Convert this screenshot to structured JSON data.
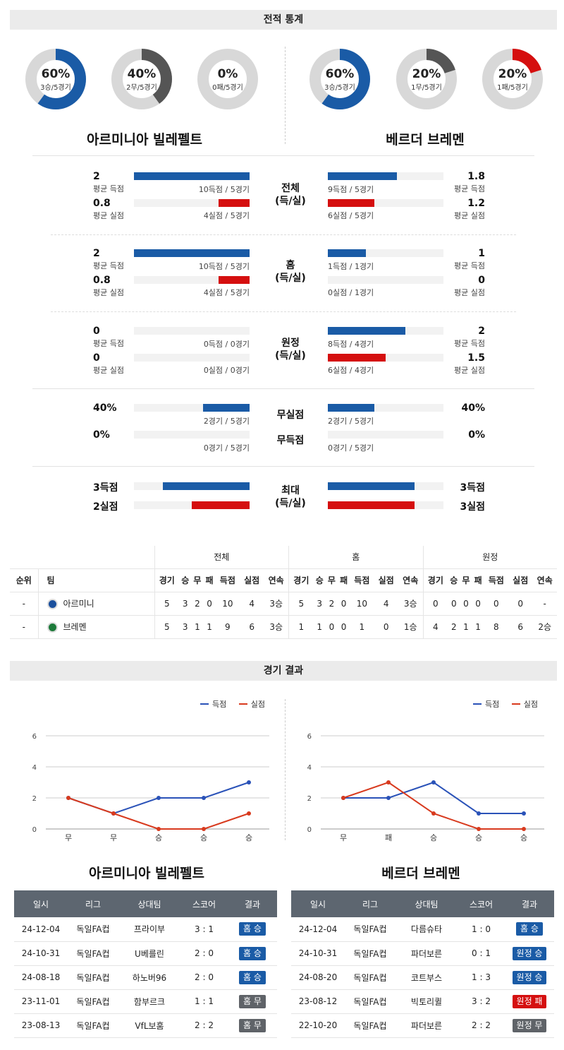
{
  "headers": {
    "stats": "전적 통계",
    "results": "경기 결과"
  },
  "teams": {
    "home": "아르미니아 빌레펠트",
    "away": "베르더 브레멘"
  },
  "donuts": {
    "home": [
      {
        "pct": "60%",
        "sub": "3승/5경기",
        "fraction": 0.6,
        "color": "#1a5ba6"
      },
      {
        "pct": "40%",
        "sub": "2무/5경기",
        "fraction": 0.4,
        "color": "#555555"
      },
      {
        "pct": "0%",
        "sub": "0패/5경기",
        "fraction": 0.0,
        "color": "#d50f0f"
      }
    ],
    "away": [
      {
        "pct": "60%",
        "sub": "3승/5경기",
        "fraction": 0.6,
        "color": "#1a5ba6"
      },
      {
        "pct": "20%",
        "sub": "1무/5경기",
        "fraction": 0.2,
        "color": "#555555"
      },
      {
        "pct": "20%",
        "sub": "1패/5경기",
        "fraction": 0.2,
        "color": "#d50f0f"
      }
    ]
  },
  "stats": {
    "avg_for": "평균 득점",
    "avg_against": "평균 실점",
    "groups": [
      {
        "label": "전체",
        "label2": "(득/실)",
        "home": {
          "for": "2",
          "for_detail": "10득점 / 5경기",
          "for_frac": 1.0,
          "against": "0.8",
          "against_detail": "4실점 / 5경기",
          "against_frac": 0.27
        },
        "away": {
          "for": "1.8",
          "for_detail": "9득점 / 5경기",
          "for_frac": 0.6,
          "against": "1.2",
          "against_detail": "6실점 / 5경기",
          "against_frac": 0.4
        }
      },
      {
        "label": "홈",
        "label2": "(득/실)",
        "home": {
          "for": "2",
          "for_detail": "10득점 / 5경기",
          "for_frac": 1.0,
          "against": "0.8",
          "against_detail": "4실점 / 5경기",
          "against_frac": 0.27
        },
        "away": {
          "for": "1",
          "for_detail": "1득점 / 1경기",
          "for_frac": 0.33,
          "against": "0",
          "against_detail": "0실점 / 1경기",
          "against_frac": 0
        }
      },
      {
        "label": "원정",
        "label2": "(득/실)",
        "home": {
          "for": "0",
          "for_detail": "0득점 / 0경기",
          "for_frac": 0,
          "against": "0",
          "against_detail": "0실점 / 0경기",
          "against_frac": 0
        },
        "away": {
          "for": "2",
          "for_detail": "8득점 / 4경기",
          "for_frac": 0.67,
          "against": "1.5",
          "against_detail": "6실점 / 4경기",
          "against_frac": 0.5
        }
      }
    ],
    "clean_sheet": {
      "label": "무실점",
      "home": "40%",
      "home_detail": "2경기 / 5경기",
      "home_frac": 0.4,
      "away": "40%",
      "away_detail": "2경기 / 5경기",
      "away_frac": 0.4
    },
    "no_score": {
      "label": "무득점",
      "home": "0%",
      "home_detail": "0경기 / 5경기",
      "home_frac": 0,
      "away": "0%",
      "away_detail": "0경기 / 5경기",
      "away_frac": 0
    },
    "max": {
      "label": "최대",
      "label2": "(득/실)",
      "home_for": "3득점",
      "home_for_frac": 0.75,
      "home_against": "2실점",
      "home_against_frac": 0.5,
      "away_for": "3득점",
      "away_for_frac": 0.75,
      "away_against": "3실점",
      "away_against_frac": 0.75
    }
  },
  "standings": {
    "groups": [
      "전체",
      "홈",
      "원정"
    ],
    "cols": [
      "순위",
      "팀",
      "경기",
      "승",
      "무",
      "패",
      "득점",
      "실점",
      "연속"
    ],
    "rows": [
      {
        "rank": "-",
        "team": "아르미니",
        "crest": "#1a4f9c",
        "all": [
          "5",
          "3",
          "2",
          "0",
          "10",
          "4",
          "3승"
        ],
        "home": [
          "5",
          "3",
          "2",
          "0",
          "10",
          "4",
          "3승"
        ],
        "away": [
          "0",
          "0",
          "0",
          "0",
          "0",
          "0",
          "-"
        ]
      },
      {
        "rank": "-",
        "team": "브레멘",
        "crest": "#1d7a3a",
        "all": [
          "5",
          "3",
          "1",
          "1",
          "9",
          "6",
          "3승"
        ],
        "home": [
          "1",
          "1",
          "0",
          "0",
          "1",
          "0",
          "1승"
        ],
        "away": [
          "4",
          "2",
          "1",
          "1",
          "8",
          "6",
          "2승"
        ]
      }
    ]
  },
  "legend": {
    "for": "득점",
    "against": "실점"
  },
  "colors": {
    "for": "#2a52b8",
    "against": "#d83a1e"
  },
  "chart_data": [
    {
      "type": "line",
      "categories": [
        "무",
        "무",
        "승",
        "승",
        "승"
      ],
      "ylim": [
        0,
        6
      ],
      "yticks": [
        "0",
        "2",
        "4",
        "6"
      ],
      "series": [
        {
          "name": "득점",
          "values": [
            2,
            1,
            2,
            2,
            3
          ]
        },
        {
          "name": "실점",
          "values": [
            2,
            1,
            0,
            0,
            1
          ]
        }
      ]
    },
    {
      "type": "line",
      "categories": [
        "무",
        "패",
        "승",
        "승",
        "승"
      ],
      "ylim": [
        0,
        6
      ],
      "yticks": [
        "0",
        "2",
        "4",
        "6"
      ],
      "series": [
        {
          "name": "득점",
          "values": [
            2,
            2,
            3,
            1,
            1
          ]
        },
        {
          "name": "실점",
          "values": [
            2,
            3,
            1,
            0,
            0
          ]
        }
      ]
    }
  ],
  "results": {
    "cols": [
      "일시",
      "리그",
      "상대팀",
      "스코어",
      "결과"
    ],
    "home": [
      {
        "date": "24-12-04",
        "league": "독일FA컵",
        "opp": "프라이부",
        "score": "3 : 1",
        "result": "홈 승",
        "color": "blue"
      },
      {
        "date": "24-10-31",
        "league": "독일FA컵",
        "opp": "U베를린",
        "score": "2 : 0",
        "result": "홈 승",
        "color": "blue"
      },
      {
        "date": "24-08-18",
        "league": "독일FA컵",
        "opp": "하노버96",
        "score": "2 : 0",
        "result": "홈 승",
        "color": "blue"
      },
      {
        "date": "23-11-01",
        "league": "독일FA컵",
        "opp": "함부르크",
        "score": "1 : 1",
        "result": "홈 무",
        "color": "gray"
      },
      {
        "date": "23-08-13",
        "league": "독일FA컵",
        "opp": "VfL보훔",
        "score": "2 : 2",
        "result": "홈 무",
        "color": "gray"
      }
    ],
    "away": [
      {
        "date": "24-12-04",
        "league": "독일FA컵",
        "opp": "다름슈타",
        "score": "1 : 0",
        "result": "홈 승",
        "color": "blue"
      },
      {
        "date": "24-10-31",
        "league": "독일FA컵",
        "opp": "파더보른",
        "score": "0 : 1",
        "result": "원정 승",
        "color": "blue"
      },
      {
        "date": "24-08-20",
        "league": "독일FA컵",
        "opp": "코트부스",
        "score": "1 : 3",
        "result": "원정 승",
        "color": "blue"
      },
      {
        "date": "23-08-12",
        "league": "독일FA컵",
        "opp": "빅토리퀼",
        "score": "3 : 2",
        "result": "원정 패",
        "color": "red"
      },
      {
        "date": "22-10-20",
        "league": "독일FA컵",
        "opp": "파더보른",
        "score": "2 : 2",
        "result": "원정 무",
        "color": "gray"
      }
    ]
  }
}
